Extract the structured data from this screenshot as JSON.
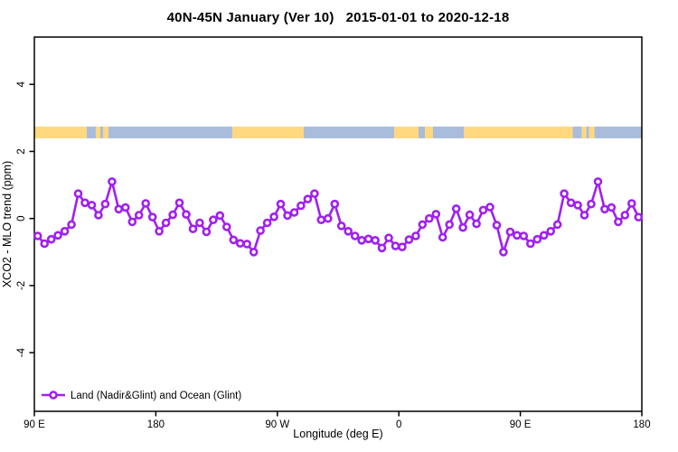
{
  "chart_data": {
    "type": "line",
    "title": "40N-45N January (Ver 10)   2015-01-01 to 2020-12-18",
    "xlabel": "Longitude (deg E)",
    "ylabel": "XCO2 - MLO trend (ppm)",
    "grid": false,
    "legend": {
      "label": "Land (Nadir&Glint) and Ocean (Glint)",
      "position": "bottom-left",
      "marker": "open-circle-on-line"
    },
    "x_axis": {
      "label": "Longitude (deg E)",
      "range_deg": [
        90,
        540
      ],
      "ticks": [
        {
          "lon": 90,
          "label": "90 E"
        },
        {
          "lon": 180,
          "label": "180"
        },
        {
          "lon": 270,
          "label": "90 W"
        },
        {
          "lon": 360,
          "label": "0"
        },
        {
          "lon": 450,
          "label": "90 E"
        },
        {
          "lon": 540,
          "label": "180"
        }
      ]
    },
    "y_axis": {
      "label": "XCO2 - MLO trend (ppm)",
      "ticks": [
        {
          "value": -4,
          "label": "-4"
        },
        {
          "value": -2,
          "label": "-2"
        },
        {
          "value": 0,
          "label": "0"
        },
        {
          "value": 2,
          "label": "2"
        },
        {
          "value": 4,
          "label": "4"
        }
      ],
      "ylim": [
        -5.7,
        5.4
      ]
    },
    "series": {
      "name": "Land (Nadir&Glint) and Ocean (Glint)",
      "lon_start": 92.5,
      "lon_step": 5,
      "wrap_repeat_points": 18,
      "values": [
        -0.52,
        -0.75,
        -0.62,
        -0.5,
        -0.38,
        -0.18,
        0.74,
        0.47,
        0.4,
        0.1,
        0.43,
        1.1,
        0.28,
        0.33,
        -0.1,
        0.1,
        0.45,
        0.04,
        -0.38,
        -0.13,
        0.11,
        0.47,
        0.12,
        -0.31,
        -0.13,
        -0.4,
        -0.04,
        0.09,
        -0.25,
        -0.64,
        -0.74,
        -0.76,
        -1.0,
        -0.36,
        -0.13,
        0.05,
        0.43,
        0.09,
        0.18,
        0.38,
        0.58,
        0.74,
        -0.04,
        0.0,
        0.43,
        -0.22,
        -0.38,
        -0.52,
        -0.65,
        -0.61,
        -0.65,
        -0.88,
        -0.58,
        -0.82,
        -0.85,
        -0.63,
        -0.52,
        -0.18,
        0.0,
        0.13,
        -0.56,
        -0.18,
        0.29,
        -0.27,
        0.11,
        -0.16,
        0.25,
        0.34,
        -0.2,
        -1.0,
        -0.4,
        -0.5
      ]
    },
    "surface_band": {
      "value_top": 2.74,
      "value_bottom": 2.39,
      "segments": [
        [
          90.0,
          128.8,
          "land"
        ],
        [
          128.8,
          135.5,
          "ocean"
        ],
        [
          135.5,
          138.9,
          "land"
        ],
        [
          138.9,
          140.9,
          "ocean"
        ],
        [
          140.9,
          144.9,
          "land"
        ],
        [
          144.9,
          236.6,
          "ocean"
        ],
        [
          236.6,
          289.5,
          "land"
        ],
        [
          289.5,
          356.5,
          "ocean"
        ],
        [
          356.5,
          374.6,
          "land"
        ],
        [
          374.6,
          379.3,
          "ocean"
        ],
        [
          379.3,
          385.3,
          "land"
        ],
        [
          385.3,
          408.1,
          "ocean"
        ],
        [
          408.1,
          488.8,
          "land"
        ],
        [
          488.8,
          495.5,
          "ocean"
        ],
        [
          495.5,
          498.9,
          "land"
        ],
        [
          498.9,
          500.9,
          "ocean"
        ],
        [
          500.9,
          504.9,
          "land"
        ],
        [
          504.9,
          540.0,
          "ocean"
        ]
      ]
    },
    "colors": {
      "line": "#A020F0",
      "marker_fill": "#FFFFFF",
      "land": "#FFD87F",
      "ocean": "#A9BCDB",
      "axis": "#000000"
    }
  }
}
